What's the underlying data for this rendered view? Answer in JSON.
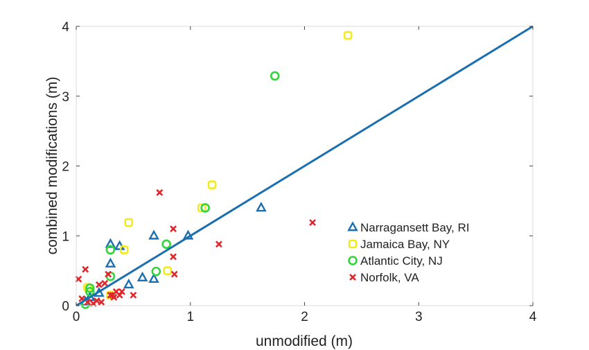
{
  "chart_data": {
    "type": "scatter",
    "title": "",
    "xlabel": "unmodified (m)",
    "ylabel": "combined modifications (m)",
    "xlim": [
      0,
      4
    ],
    "ylim": [
      0,
      4
    ],
    "xticks": [
      0,
      1,
      2,
      3,
      4
    ],
    "yticks": [
      0,
      1,
      2,
      3,
      4
    ],
    "grid": false,
    "legend_position": "right",
    "reference_line": {
      "x": [
        0,
        4
      ],
      "y": [
        0,
        4
      ],
      "color": "#1a6fb0"
    },
    "series": [
      {
        "name": "Narragansett Bay, RI",
        "marker": "triangle",
        "color": "#1a6fb0",
        "x": [
          0.08,
          0.12,
          0.2,
          0.3,
          0.3,
          0.38,
          0.46,
          0.58,
          0.68,
          0.68,
          0.98,
          1.62
        ],
        "y": [
          0.05,
          0.12,
          0.18,
          0.6,
          0.88,
          0.85,
          0.3,
          0.4,
          0.38,
          1.0,
          1.0,
          1.4
        ]
      },
      {
        "name": "Jamaica Bay, NY",
        "marker": "square",
        "color": "#f2ea1a",
        "x": [
          0.1,
          0.3,
          0.42,
          0.46,
          0.8,
          1.1,
          1.19,
          2.38
        ],
        "y": [
          0.26,
          0.15,
          0.8,
          1.19,
          0.5,
          1.4,
          1.73,
          3.87
        ]
      },
      {
        "name": "Atlantic City, NJ",
        "marker": "circle",
        "color": "#2fd63a",
        "x": [
          0.08,
          0.12,
          0.12,
          0.3,
          0.3,
          0.7,
          0.79,
          1.13,
          1.74
        ],
        "y": [
          0.02,
          0.2,
          0.25,
          0.42,
          0.8,
          0.49,
          0.88,
          1.4,
          3.29
        ]
      },
      {
        "name": "Norfolk, VA",
        "marker": "x",
        "color": "#e0262a",
        "x": [
          0.02,
          0.05,
          0.08,
          0.1,
          0.15,
          0.18,
          0.2,
          0.22,
          0.25,
          0.28,
          0.3,
          0.32,
          0.33,
          0.35,
          0.38,
          0.4,
          0.5,
          0.73,
          0.85,
          0.85,
          0.86,
          1.25,
          2.07
        ],
        "y": [
          0.38,
          0.1,
          0.52,
          0.05,
          0.03,
          0.07,
          0.3,
          0.05,
          0.32,
          0.45,
          0.15,
          0.15,
          0.12,
          0.2,
          0.15,
          0.2,
          0.15,
          1.62,
          1.1,
          0.7,
          0.45,
          0.88,
          1.19
        ]
      }
    ]
  }
}
